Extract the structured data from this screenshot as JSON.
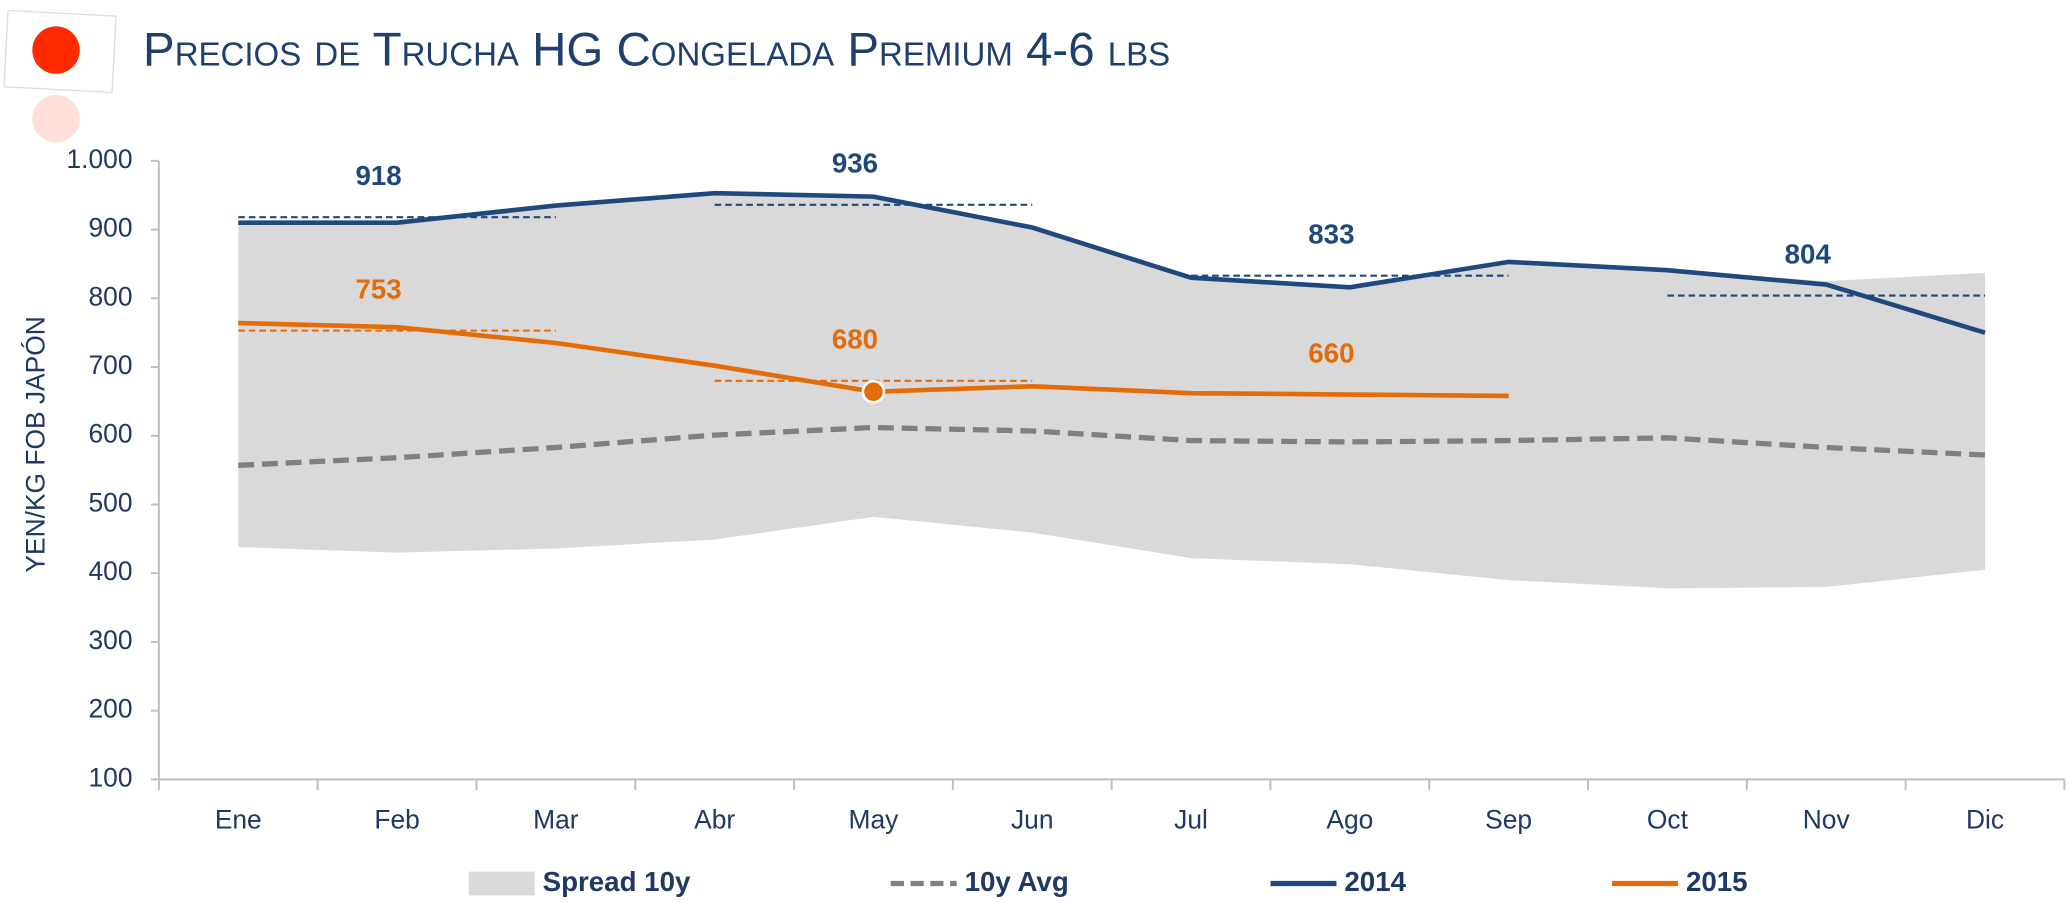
{
  "chart_data": {
    "type": "line",
    "title": "Precios de Trucha HG Congelada Premium 4-6 lbs",
    "y_label": "YEN/KG FOB JAPÓN",
    "categories": [
      "Ene",
      "Feb",
      "Mar",
      "Abr",
      "May",
      "Jun",
      "Jul",
      "Ago",
      "Sep",
      "Oct",
      "Nov",
      "Dic"
    ],
    "ylim": [
      100,
      1000
    ],
    "yticks": [
      100,
      200,
      300,
      400,
      500,
      600,
      700,
      800,
      900,
      {
        "value": 1000,
        "label": "1.000"
      }
    ],
    "series": [
      {
        "name": "Spread 10y",
        "kind": "band",
        "color": "#d9d9d9",
        "upper": [
          908,
          910,
          935,
          953,
          948,
          903,
          830,
          816,
          853,
          841,
          825,
          837
        ],
        "lower": [
          438,
          430,
          436,
          449,
          482,
          459,
          422,
          413,
          390,
          378,
          380,
          405
        ]
      },
      {
        "name": "10y Avg",
        "kind": "dashed",
        "color": "#808080",
        "values": [
          557,
          568,
          583,
          601,
          612,
          607,
          593,
          591,
          593,
          597,
          583,
          572
        ]
      },
      {
        "name": "2014",
        "kind": "solid",
        "color": "#1f497d",
        "values": [
          910,
          910,
          935,
          953,
          948,
          903,
          830,
          816,
          853,
          841,
          820,
          750
        ],
        "quarter_averages": [
          918,
          936,
          833,
          804
        ]
      },
      {
        "name": "2015",
        "kind": "solid",
        "color": "#e36c09",
        "values": [
          764,
          758,
          735,
          702,
          664,
          672,
          662,
          660,
          658,
          null,
          null,
          null
        ],
        "quarter_averages": [
          753,
          680,
          660
        ]
      }
    ]
  }
}
